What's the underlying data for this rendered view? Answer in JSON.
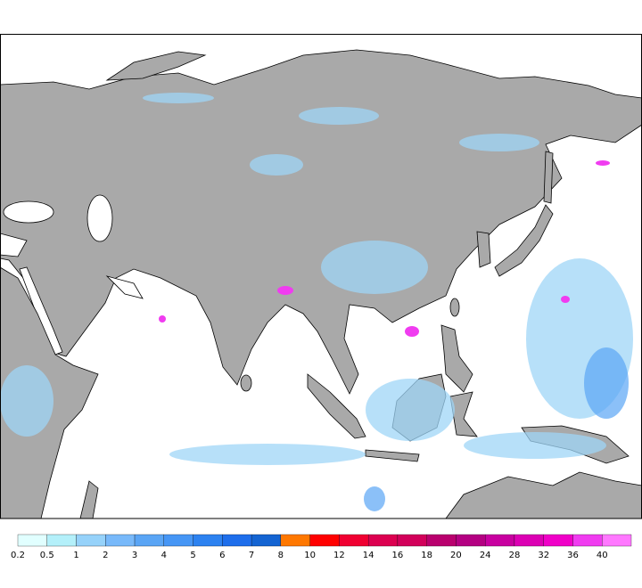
{
  "legend": {
    "items": [
      {
        "label": "0.2",
        "color": "#e1ffff"
      },
      {
        "label": "0.5",
        "color": "#b4f0fa"
      },
      {
        "label": "1",
        "color": "#96d2fa"
      },
      {
        "label": "2",
        "color": "#78b9fa"
      },
      {
        "label": "3",
        "color": "#5aa5f5"
      },
      {
        "label": "4",
        "color": "#4696f5"
      },
      {
        "label": "5",
        "color": "#2d82f0"
      },
      {
        "label": "6",
        "color": "#1e6eeb"
      },
      {
        "label": "7",
        "color": "#1464d2"
      },
      {
        "label": "8",
        "color": "#ff7800"
      },
      {
        "label": "10",
        "color": "#ff0000"
      },
      {
        "label": "12",
        "color": "#f00032"
      },
      {
        "label": "14",
        "color": "#dc0050"
      },
      {
        "label": "16",
        "color": "#d2005a"
      },
      {
        "label": "18",
        "color": "#b9006e"
      },
      {
        "label": "20",
        "color": "#b40082"
      },
      {
        "label": "24",
        "color": "#c800a0"
      },
      {
        "label": "28",
        "color": "#dc00b4"
      },
      {
        "label": "32",
        "color": "#f000c8"
      },
      {
        "label": "36",
        "color": "#f03cf0"
      },
      {
        "label": "40",
        "color": "#ff78ff"
      }
    ]
  }
}
